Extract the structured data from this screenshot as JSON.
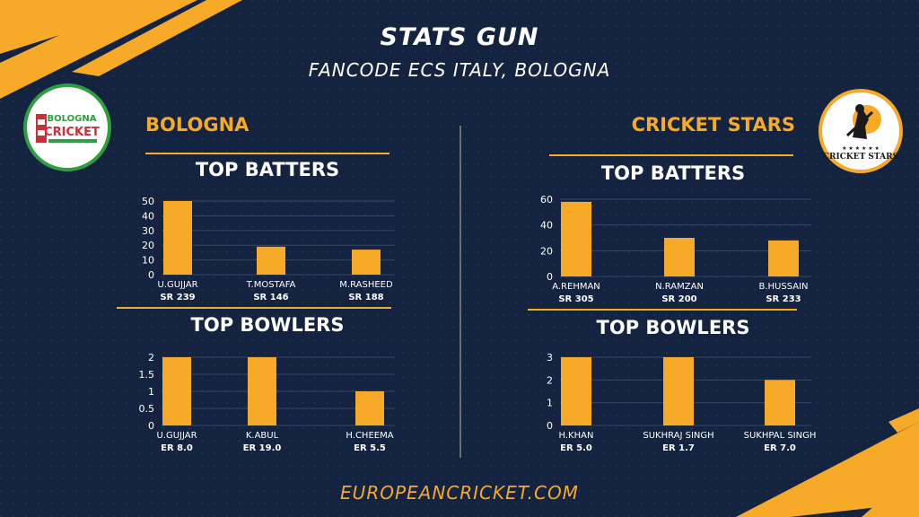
{
  "header": {
    "title": "STATS GUN",
    "subtitle": "FANCODE ECS ITALY, BOLOGNA"
  },
  "footer": {
    "url": "EUROPEANCRICKET.COM"
  },
  "colors": {
    "accent": "#f7a928",
    "background": "#14233f",
    "bar": "#f7a928"
  },
  "teams": [
    {
      "name": "BOLOGNA",
      "logo_text": "BOLOGNA CRICKET CLUB"
    },
    {
      "name": "CRICKET STARS",
      "logo_text": "CRICKET STARS"
    }
  ],
  "chart_data": [
    {
      "type": "bar",
      "title": "TOP BATTERS",
      "team": "BOLOGNA",
      "categories": [
        "U.GUJJAR",
        "T.MOSTAFA",
        "M.RASHEED"
      ],
      "sublabels": [
        "SR 239",
        "SR 146",
        "SR 188"
      ],
      "values": [
        50,
        19,
        17
      ],
      "ylim": [
        0,
        50
      ],
      "yticks": [
        0,
        10,
        20,
        30,
        40,
        50
      ],
      "grid": true
    },
    {
      "type": "bar",
      "title": "TOP BOWLERS",
      "team": "BOLOGNA",
      "categories": [
        "U.GUJJAR",
        "K.ABUL",
        "H.CHEEMA"
      ],
      "sublabels": [
        "ER 8.0",
        "ER 19.0",
        "ER 5.5"
      ],
      "values": [
        2,
        2,
        1
      ],
      "ylim": [
        0,
        2
      ],
      "yticks": [
        0,
        0.5,
        1,
        1.5,
        2
      ],
      "grid": true
    },
    {
      "type": "bar",
      "title": "TOP BATTERS",
      "team": "CRICKET STARS",
      "categories": [
        "A.REHMAN",
        "N.RAMZAN",
        "B.HUSSAIN"
      ],
      "sublabels": [
        "SR 305",
        "SR 200",
        "SR 233"
      ],
      "values": [
        58,
        30,
        28
      ],
      "ylim": [
        0,
        60
      ],
      "yticks": [
        0,
        20,
        40,
        60
      ],
      "grid": true
    },
    {
      "type": "bar",
      "title": "TOP BOWLERS",
      "team": "CRICKET STARS",
      "categories": [
        "H.KHAN",
        "SUKHRAJ SINGH",
        "SUKHPAL SINGH"
      ],
      "sublabels": [
        "ER 5.0",
        "ER 1.7",
        "ER 7.0"
      ],
      "values": [
        3,
        3,
        2
      ],
      "ylim": [
        0,
        3
      ],
      "yticks": [
        0,
        1,
        2,
        3
      ],
      "grid": true
    }
  ]
}
